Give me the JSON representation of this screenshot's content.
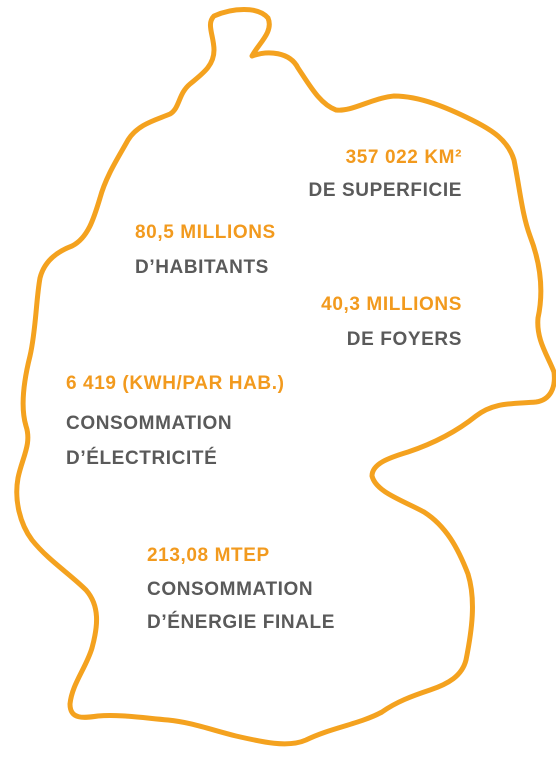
{
  "stats": [
    {
      "value": "357 022 KM²",
      "lines": [
        "DE SUPERFICIE"
      ]
    },
    {
      "value": "80,5 MILLIONS",
      "lines": [
        "D’HABITANTS"
      ]
    },
    {
      "value": "40,3 MILLIONS",
      "lines": [
        "DE FOYERS"
      ]
    },
    {
      "value": "6 419 (KWH/PAR HAB.)",
      "lines": [
        "CONSOMMATION",
        "D’ÉLECTRICITÉ"
      ]
    },
    {
      "value": "213,08 MTEP",
      "lines": [
        "CONSOMMATION",
        "D’ÉNERGIE FINALE"
      ]
    }
  ]
}
